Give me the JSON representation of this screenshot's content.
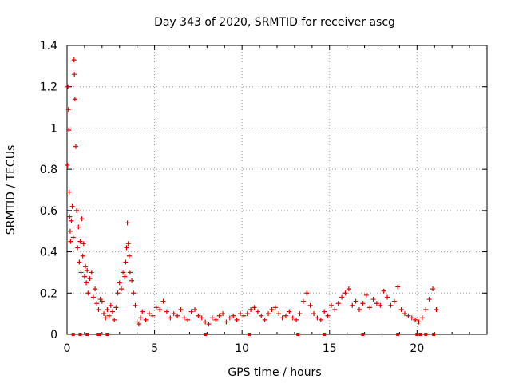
{
  "chart_data": {
    "type": "scatter",
    "title": "Day 343 of 2020, SRMTID for receiver ascg",
    "xlabel": "GPS time / hours",
    "ylabel": "SRMTID / TECUs",
    "xlim": [
      0,
      24
    ],
    "ylim": [
      0,
      1.4
    ],
    "xticks": [
      0,
      5,
      10,
      15,
      20
    ],
    "xtick_labels": [
      "0",
      "5",
      "10",
      "15",
      "20"
    ],
    "yticks": [
      0,
      0.2,
      0.4,
      0.6,
      0.8,
      1.0,
      1.2,
      1.4
    ],
    "ytick_labels": [
      "0",
      "0.2",
      "0.4",
      "0.6",
      "0.8",
      "1",
      "1.2",
      "1.4"
    ],
    "grid": true,
    "marker": "+",
    "color": "#dd0000",
    "series": [
      {
        "name": "SRMTID",
        "x": [
          0.02,
          0.05,
          0.08,
          0.1,
          0.12,
          0.15,
          0.18,
          0.2,
          0.25,
          0.3,
          0.35,
          0.4,
          0.42,
          0.45,
          0.5,
          0.55,
          0.6,
          0.65,
          0.7,
          0.75,
          0.8,
          0.85,
          0.9,
          0.95,
          1.0,
          1.05,
          1.1,
          1.15,
          1.2,
          1.3,
          1.4,
          1.5,
          1.6,
          1.7,
          1.8,
          1.9,
          2.0,
          2.1,
          2.2,
          2.3,
          2.4,
          2.5,
          2.6,
          2.7,
          2.8,
          2.9,
          3.0,
          3.1,
          3.2,
          3.3,
          3.35,
          3.4,
          3.45,
          3.5,
          3.55,
          3.6,
          3.7,
          3.8,
          3.9,
          4.0,
          4.1,
          4.2,
          4.3,
          4.5,
          4.7,
          4.9,
          5.1,
          5.3,
          5.5,
          5.7,
          5.9,
          6.1,
          6.3,
          6.5,
          6.7,
          6.9,
          7.1,
          7.3,
          7.5,
          7.7,
          7.9,
          8.1,
          8.3,
          8.5,
          8.7,
          8.9,
          9.1,
          9.3,
          9.5,
          9.7,
          9.9,
          10.1,
          10.3,
          10.5,
          10.7,
          10.9,
          11.1,
          11.3,
          11.5,
          11.7,
          11.9,
          12.1,
          12.3,
          12.5,
          12.7,
          12.9,
          13.1,
          13.3,
          13.5,
          13.7,
          13.9,
          14.1,
          14.3,
          14.5,
          14.7,
          14.9,
          15.1,
          15.3,
          15.5,
          15.7,
          15.9,
          16.1,
          16.3,
          16.5,
          16.7,
          16.9,
          17.1,
          17.3,
          17.5,
          17.7,
          17.9,
          18.1,
          18.3,
          18.5,
          18.7,
          18.9,
          19.1,
          19.3,
          19.5,
          19.7,
          19.9,
          20.1,
          20.3,
          20.5,
          20.7,
          20.9,
          21.1
        ],
        "y": [
          0.82,
          1.2,
          1.09,
          0.99,
          0.69,
          0.57,
          0.5,
          0.45,
          0.55,
          0.62,
          0.47,
          1.33,
          1.26,
          1.14,
          0.91,
          0.6,
          0.42,
          0.52,
          0.35,
          0.45,
          0.3,
          0.56,
          0.38,
          0.44,
          0.28,
          0.33,
          0.25,
          0.31,
          0.2,
          0.27,
          0.3,
          0.18,
          0.22,
          0.15,
          0.12,
          0.17,
          0.16,
          0.1,
          0.08,
          0.12,
          0.09,
          0.14,
          0.11,
          0.07,
          0.13,
          0.2,
          0.25,
          0.22,
          0.3,
          0.28,
          0.35,
          0.42,
          0.54,
          0.44,
          0.38,
          0.3,
          0.26,
          0.2,
          0.14,
          0.06,
          0.05,
          0.08,
          0.11,
          0.07,
          0.1,
          0.09,
          0.13,
          0.12,
          0.16,
          0.11,
          0.08,
          0.1,
          0.09,
          0.12,
          0.08,
          0.07,
          0.11,
          0.12,
          0.09,
          0.08,
          0.06,
          0.05,
          0.08,
          0.07,
          0.09,
          0.1,
          0.06,
          0.08,
          0.09,
          0.07,
          0.1,
          0.09,
          0.1,
          0.12,
          0.13,
          0.11,
          0.09,
          0.07,
          0.1,
          0.12,
          0.13,
          0.1,
          0.08,
          0.09,
          0.11,
          0.08,
          0.07,
          0.1,
          0.16,
          0.2,
          0.14,
          0.1,
          0.08,
          0.07,
          0.11,
          0.09,
          0.14,
          0.12,
          0.15,
          0.18,
          0.2,
          0.22,
          0.14,
          0.16,
          0.12,
          0.15,
          0.19,
          0.13,
          0.17,
          0.15,
          0.14,
          0.21,
          0.18,
          0.14,
          0.16,
          0.23,
          0.12,
          0.1,
          0.09,
          0.08,
          0.07,
          0.06,
          0.08,
          0.12,
          0.17,
          0.22,
          0.12
        ]
      }
    ],
    "baseline_markers_x": [
      0.35,
      0.75,
      1.15,
      1.75,
      1.85,
      2.3,
      7.9,
      10.4,
      13.2,
      14.7,
      16.9,
      18.9,
      20.0,
      20.2,
      20.5,
      20.95
    ]
  }
}
